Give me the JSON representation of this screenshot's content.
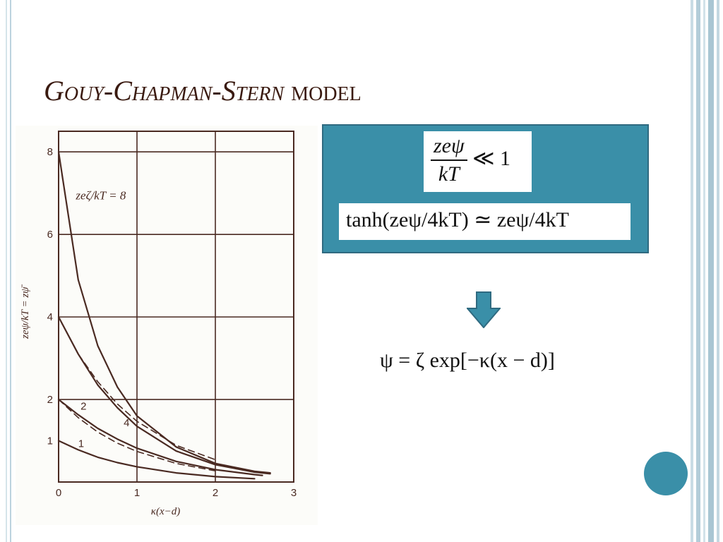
{
  "slide": {
    "title_italic": "Gouy-Chapman-Stern",
    "title_roman": " model"
  },
  "colors": {
    "accent": "#3a8fa8",
    "title": "#3a1a10",
    "frame": "#bcd3de"
  },
  "conditions": {
    "inequality": {
      "numerator": "zeψ",
      "denominator": "kT",
      "relation": "≪ 1"
    },
    "approximation": {
      "lhs": "tanh(zeψ/4kT)",
      "relation": "≃",
      "rhs": "zeψ/4kT"
    }
  },
  "implication_icon": "down-arrow-icon",
  "result": {
    "equation": "ψ = ζ exp[−κ(x − d)]"
  },
  "decorative_icon": "circle-icon",
  "chart_data": {
    "type": "line",
    "xlabel": "κ(x−d)",
    "ylabel": "zeψ/kT = zψ̄",
    "xlim": [
      0,
      3
    ],
    "ylim": [
      0,
      8.5
    ],
    "x_ticks": [
      "0",
      "1",
      "2",
      "3"
    ],
    "y_ticks": [
      "1",
      "2",
      "4",
      "6",
      "8"
    ],
    "grid": true,
    "annotation": "zeζ/kT = 8",
    "series": [
      {
        "name": "8",
        "style": "solid",
        "x": [
          0,
          0.25,
          0.5,
          0.75,
          1,
          1.5,
          2,
          2.5,
          2.7
        ],
        "y": [
          8,
          4.9,
          3.3,
          2.3,
          1.6,
          0.85,
          0.45,
          0.26,
          0.22
        ]
      },
      {
        "name": "4",
        "style": "solid",
        "x": [
          0,
          0.25,
          0.5,
          0.75,
          1,
          1.5,
          2,
          2.5,
          2.7
        ],
        "y": [
          4,
          3.1,
          2.35,
          1.8,
          1.35,
          0.75,
          0.42,
          0.24,
          0.2
        ]
      },
      {
        "name": "4 (linear)",
        "style": "dashed",
        "x": [
          0,
          0.25,
          0.5,
          0.75,
          1,
          1.5,
          2
        ],
        "y": [
          4,
          3.1,
          2.43,
          1.89,
          1.47,
          0.89,
          0.54
        ]
      },
      {
        "name": "2",
        "style": "solid",
        "x": [
          0,
          0.25,
          0.5,
          0.75,
          1,
          1.5,
          2,
          2.5,
          2.6
        ],
        "y": [
          2,
          1.63,
          1.3,
          1.04,
          0.82,
          0.5,
          0.3,
          0.18,
          0.16
        ]
      },
      {
        "name": "2 (linear)",
        "style": "dashed",
        "x": [
          0,
          0.25,
          0.5,
          0.75,
          1,
          1.5,
          2
        ],
        "y": [
          2,
          1.56,
          1.21,
          0.94,
          0.74,
          0.45,
          0.27
        ]
      },
      {
        "name": "1",
        "style": "solid",
        "x": [
          0,
          0.25,
          0.5,
          0.75,
          1,
          1.5,
          2,
          2.5
        ],
        "y": [
          1,
          0.78,
          0.6,
          0.47,
          0.37,
          0.22,
          0.13,
          0.08
        ]
      }
    ],
    "curve_labels": [
      {
        "text": "2",
        "x": 0.28,
        "y": 1.75
      },
      {
        "text": "4",
        "x": 0.83,
        "y": 1.35
      },
      {
        "text": "1",
        "x": 0.25,
        "y": 0.85
      }
    ]
  }
}
